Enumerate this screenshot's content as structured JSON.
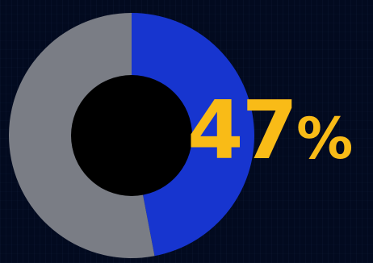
{
  "chart_data": {
    "type": "pie",
    "style": "donut",
    "slices": [
      {
        "value": 47,
        "color": "#1735cf"
      },
      {
        "value": 53,
        "color": "#7a7d85"
      }
    ],
    "label": {
      "number": "47",
      "suffix": "%",
      "color": "#f9bb17"
    },
    "hole_color": "#000000",
    "background": "#020a1f"
  }
}
